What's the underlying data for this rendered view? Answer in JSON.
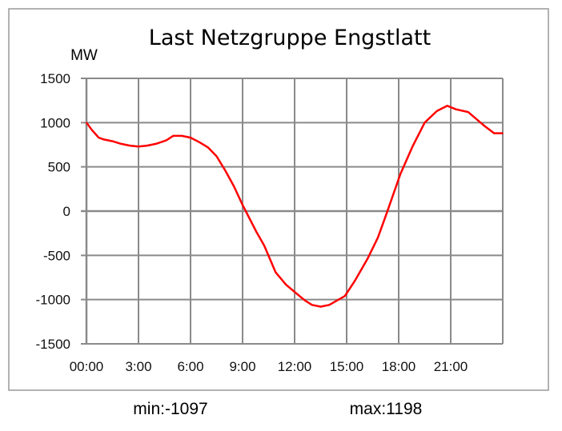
{
  "chart_data": {
    "type": "line",
    "title": "Last Netzgruppe Engstlatt",
    "ylabel": "MW",
    "xlabel": "",
    "xlim": [
      0,
      24
    ],
    "ylim": [
      -1500,
      1500
    ],
    "grid": true,
    "yticks": [
      1500,
      1000,
      500,
      0,
      -500,
      -1000,
      -1500
    ],
    "ytick_labels": [
      "1500",
      "1000",
      "500",
      "0",
      "-500",
      "-1000",
      "-1500"
    ],
    "xticks": [
      0,
      3,
      6,
      9,
      12,
      15,
      18,
      21
    ],
    "xtick_labels": [
      "00:00",
      "3:00",
      "6:00",
      "9:00",
      "12:00",
      "15:00",
      "18:00",
      "21:00"
    ],
    "series": [
      {
        "name": "Last",
        "color": "#ff0000",
        "x": [
          0,
          0.3,
          0.7,
          1.0,
          1.5,
          2.0,
          2.5,
          3.0,
          3.5,
          4.0,
          4.6,
          5.0,
          5.5,
          6.0,
          6.5,
          7.0,
          7.5,
          8.0,
          8.5,
          9.0,
          9.8,
          10.25,
          10.9,
          11.5,
          12.1,
          12.6,
          13.0,
          13.5,
          14.0,
          14.9,
          15.5,
          16.2,
          16.8,
          17.3,
          18.1,
          18.8,
          19.5,
          20.2,
          20.8,
          21.3,
          22.0,
          22.9,
          23.5,
          24.0
        ],
        "y": [
          1000,
          920,
          830,
          810,
          790,
          760,
          740,
          730,
          740,
          760,
          800,
          850,
          850,
          830,
          780,
          720,
          620,
          460,
          280,
          70,
          -235,
          -390,
          -690,
          -830,
          -930,
          -1010,
          -1060,
          -1080,
          -1060,
          -960,
          -780,
          -540,
          -300,
          -30,
          420,
          730,
          1000,
          1130,
          1190,
          1150,
          1120,
          970,
          880,
          880
        ]
      }
    ],
    "annotations": {
      "min_label": "min:-1097",
      "max_label": "max:1198"
    }
  }
}
